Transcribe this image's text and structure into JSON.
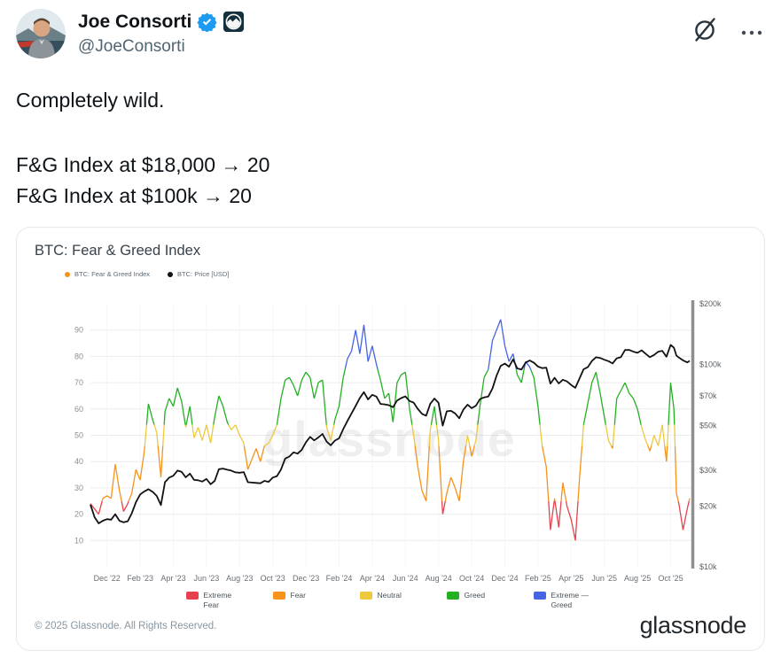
{
  "tweet": {
    "author_name": "Joe Consorti",
    "handle": "@JoeConsorti",
    "body": [
      "Completely wild.",
      "F&G Index at $18,000 → 20",
      "F&G Index at $100k → 20"
    ],
    "icons": {
      "verified": "verified-badge",
      "affiliate": "affiliate-badge-logo",
      "grok": "grok-circle-slash-icon",
      "more": "ellipsis-icon"
    }
  },
  "chart_card": {
    "title": "BTC: Fear & Greed Index",
    "series_legend": [
      {
        "label": "BTC: Fear & Greed Index",
        "color": "#f7921b"
      },
      {
        "label": "BTC: Price [USD]",
        "color": "#121212"
      }
    ],
    "category_legend": [
      {
        "label": "Extreme Fear",
        "color": "#e8414e"
      },
      {
        "label": "Fear",
        "color": "#f7921b"
      },
      {
        "label": "Neutral",
        "color": "#eec93d"
      },
      {
        "label": "Greed",
        "color": "#23b123"
      },
      {
        "label": "Extreme — Greed",
        "color": "#4664e4"
      }
    ],
    "watermark": "glassnode",
    "copyright": "© 2025 Glassnode. All Rights Reserved.",
    "wordmark": "glassnode"
  },
  "chart_data": {
    "type": "line",
    "title": "BTC: Fear & Greed Index",
    "x_description": "months elapsed since Nov 2022 (m=1 is Dec 2022)",
    "x_tick_months": [
      1,
      3,
      5,
      7,
      9,
      11,
      13,
      15,
      17,
      19,
      21,
      23,
      25,
      27,
      29,
      31,
      33,
      35
    ],
    "x_tick_labels": [
      "Dec '22",
      "Feb '23",
      "Apr '23",
      "Jun '23",
      "Aug '23",
      "Oct '23",
      "Dec '23",
      "Feb '24",
      "Apr '24",
      "Jun '24",
      "Aug '24",
      "Oct '24",
      "Dec '24",
      "Feb '25",
      "Apr '25",
      "Jun '25",
      "Aug '25",
      "Oct '25"
    ],
    "left_axis": {
      "name": "Fear & Greed Index",
      "ticks": [
        10,
        20,
        30,
        40,
        50,
        60,
        70,
        80,
        90
      ],
      "range": [
        0,
        100
      ],
      "grid": true
    },
    "right_axis": {
      "name": "BTC Price [USD]",
      "scale": "log",
      "ticks": [
        {
          "label": "$200k",
          "value": 200
        },
        {
          "label": "$100k",
          "value": 100
        },
        {
          "label": "$70k",
          "value": 70
        },
        {
          "label": "$50k",
          "value": 50
        },
        {
          "label": "$30k",
          "value": 30
        },
        {
          "label": "$20k",
          "value": 20
        },
        {
          "label": "$10k",
          "value": 10
        }
      ],
      "range_k": [
        10,
        200
      ]
    },
    "bands": {
      "extreme_fear": [
        0,
        25
      ],
      "fear": [
        25,
        46
      ],
      "neutral": [
        46,
        54
      ],
      "greed": [
        54,
        75
      ],
      "extreme_greed": [
        75,
        100
      ]
    },
    "colors": {
      "extreme_fear": "#e8414e",
      "fear": "#f7921b",
      "neutral": "#eec93d",
      "greed": "#23b123",
      "extreme_greed": "#4664e4",
      "price": "#121212"
    },
    "points_format": [
      "month_index",
      "fear_greed_index",
      "btc_price_thousand_usd"
    ],
    "points": [
      [
        0,
        24,
        20.3
      ],
      [
        0.25,
        22,
        17.6
      ],
      [
        0.5,
        20,
        16.4
      ],
      [
        0.75,
        26,
        16.9
      ],
      [
        1,
        27,
        17.2
      ],
      [
        1.25,
        26,
        17.1
      ],
      [
        1.5,
        39,
        18.2
      ],
      [
        1.75,
        29,
        16.9
      ],
      [
        2,
        21,
        16.6
      ],
      [
        2.25,
        24,
        16.8
      ],
      [
        2.5,
        28,
        18.4
      ],
      [
        2.75,
        37,
        20.9
      ],
      [
        3,
        33,
        22.8
      ],
      [
        3.25,
        44,
        23.6
      ],
      [
        3.5,
        62,
        24.2
      ],
      [
        3.75,
        56,
        23.5
      ],
      [
        4,
        51,
        22.4
      ],
      [
        4.25,
        34,
        20.2
      ],
      [
        4.5,
        59,
        26.2
      ],
      [
        4.75,
        64,
        27.6
      ],
      [
        5,
        61,
        28.2
      ],
      [
        5.25,
        68,
        29.9
      ],
      [
        5.5,
        63,
        29.5
      ],
      [
        5.75,
        53,
        27.7
      ],
      [
        6,
        61,
        28.9
      ],
      [
        6.25,
        49,
        26.9
      ],
      [
        6.5,
        53,
        26.8
      ],
      [
        6.75,
        48,
        26.4
      ],
      [
        7,
        54,
        27.2
      ],
      [
        7.25,
        47,
        25.6
      ],
      [
        7.5,
        57,
        26.6
      ],
      [
        7.75,
        65,
        30.4
      ],
      [
        8,
        61,
        30.6
      ],
      [
        8.25,
        55,
        30.2
      ],
      [
        8.5,
        52,
        29.9
      ],
      [
        8.75,
        54,
        29.3
      ],
      [
        9,
        50,
        29.2
      ],
      [
        9.25,
        47,
        29.4
      ],
      [
        9.5,
        37,
        26.2
      ],
      [
        9.75,
        41,
        26.1
      ],
      [
        10,
        45,
        26.0
      ],
      [
        10.25,
        40,
        25.9
      ],
      [
        10.5,
        46,
        26.6
      ],
      [
        10.75,
        47,
        26.3
      ],
      [
        11,
        50,
        27.6
      ],
      [
        11.25,
        54,
        28.1
      ],
      [
        11.5,
        64,
        30.3
      ],
      [
        11.75,
        71,
        34.3
      ],
      [
        12,
        72,
        35.1
      ],
      [
        12.25,
        69,
        36.8
      ],
      [
        12.5,
        65,
        36.3
      ],
      [
        12.75,
        71,
        37.9
      ],
      [
        13,
        74,
        41.3
      ],
      [
        13.25,
        72,
        43.9
      ],
      [
        13.5,
        64,
        42.2
      ],
      [
        13.75,
        70,
        43.6
      ],
      [
        14,
        71,
        45.4
      ],
      [
        14.25,
        53,
        41.6
      ],
      [
        14.5,
        48,
        39.9
      ],
      [
        14.75,
        56,
        42.1
      ],
      [
        15,
        61,
        43.2
      ],
      [
        15.25,
        72,
        48.0
      ],
      [
        15.5,
        79,
        52.5
      ],
      [
        15.75,
        82,
        57.3
      ],
      [
        16,
        90,
        62.5
      ],
      [
        16.25,
        81,
        68.4
      ],
      [
        16.5,
        92,
        73.1
      ],
      [
        16.75,
        78,
        67.3
      ],
      [
        17,
        84,
        70.9
      ],
      [
        17.25,
        77,
        69.5
      ],
      [
        17.5,
        71,
        63.9
      ],
      [
        17.75,
        64,
        63.6
      ],
      [
        18,
        66,
        63.0
      ],
      [
        18.25,
        55,
        61.6
      ],
      [
        18.5,
        70,
        66.4
      ],
      [
        18.75,
        73,
        68.3
      ],
      [
        19,
        74,
        69.6
      ],
      [
        19.25,
        60,
        66.1
      ],
      [
        19.5,
        50,
        64.9
      ],
      [
        19.75,
        38,
        60.4
      ],
      [
        20,
        29,
        57.1
      ],
      [
        20.25,
        25,
        55.9
      ],
      [
        20.5,
        52,
        63.9
      ],
      [
        20.75,
        61,
        68.0
      ],
      [
        21,
        48,
        64.7
      ],
      [
        21.25,
        20,
        49.9
      ],
      [
        21.5,
        28,
        58.8
      ],
      [
        21.75,
        34,
        59.1
      ],
      [
        22,
        30,
        57.4
      ],
      [
        22.25,
        25,
        54.3
      ],
      [
        22.5,
        40,
        59.9
      ],
      [
        22.75,
        50,
        63.4
      ],
      [
        23,
        42,
        60.9
      ],
      [
        23.25,
        48,
        62.6
      ],
      [
        23.5,
        61,
        67.5
      ],
      [
        23.75,
        72,
        68.9
      ],
      [
        24,
        75,
        69.5
      ],
      [
        24.25,
        86,
        76.2
      ],
      [
        24.5,
        90,
        88.1
      ],
      [
        24.75,
        94,
        98.5
      ],
      [
        25,
        84,
        101.2
      ],
      [
        25.25,
        78,
        97.6
      ],
      [
        25.5,
        81,
        106.2
      ],
      [
        25.75,
        73,
        95.8
      ],
      [
        26,
        70,
        94.5
      ],
      [
        26.25,
        78,
        102.4
      ],
      [
        26.5,
        76,
        104.9
      ],
      [
        26.75,
        72,
        102.2
      ],
      [
        27,
        61,
        97.8
      ],
      [
        27.25,
        46,
        96.1
      ],
      [
        27.5,
        38,
        96.6
      ],
      [
        27.75,
        14,
        80.6
      ],
      [
        28,
        26,
        86.1
      ],
      [
        28.25,
        15,
        80.7
      ],
      [
        28.5,
        32,
        84.2
      ],
      [
        28.75,
        23,
        82.6
      ],
      [
        29,
        18,
        79.3
      ],
      [
        29.25,
        10,
        76.8
      ],
      [
        29.5,
        33,
        85.2
      ],
      [
        29.75,
        54,
        94.8
      ],
      [
        30,
        62,
        97.1
      ],
      [
        30.25,
        70,
        104.2
      ],
      [
        30.5,
        74,
        108.8
      ],
      [
        30.75,
        66,
        107.9
      ],
      [
        31,
        57,
        105.7
      ],
      [
        31.25,
        48,
        104.0
      ],
      [
        31.5,
        45,
        101.3
      ],
      [
        31.75,
        64,
        107.4
      ],
      [
        32,
        67,
        109.0
      ],
      [
        32.25,
        70,
        118.1
      ],
      [
        32.5,
        66,
        118.3
      ],
      [
        32.75,
        64,
        115.9
      ],
      [
        33,
        60,
        114.4
      ],
      [
        33.25,
        53,
        117.6
      ],
      [
        33.5,
        48,
        113.0
      ],
      [
        33.75,
        44,
        108.9
      ],
      [
        34,
        50,
        111.6
      ],
      [
        34.25,
        46,
        115.9
      ],
      [
        34.5,
        54,
        117.1
      ],
      [
        34.75,
        40,
        109.4
      ],
      [
        35,
        70,
        125.1
      ],
      [
        35.2,
        60,
        121.3
      ],
      [
        35.35,
        28,
        111.0
      ],
      [
        35.5,
        24,
        108.3
      ],
      [
        35.75,
        14,
        105.0
      ],
      [
        36,
        22,
        102.6
      ],
      [
        36.15,
        26,
        104.3
      ]
    ]
  }
}
